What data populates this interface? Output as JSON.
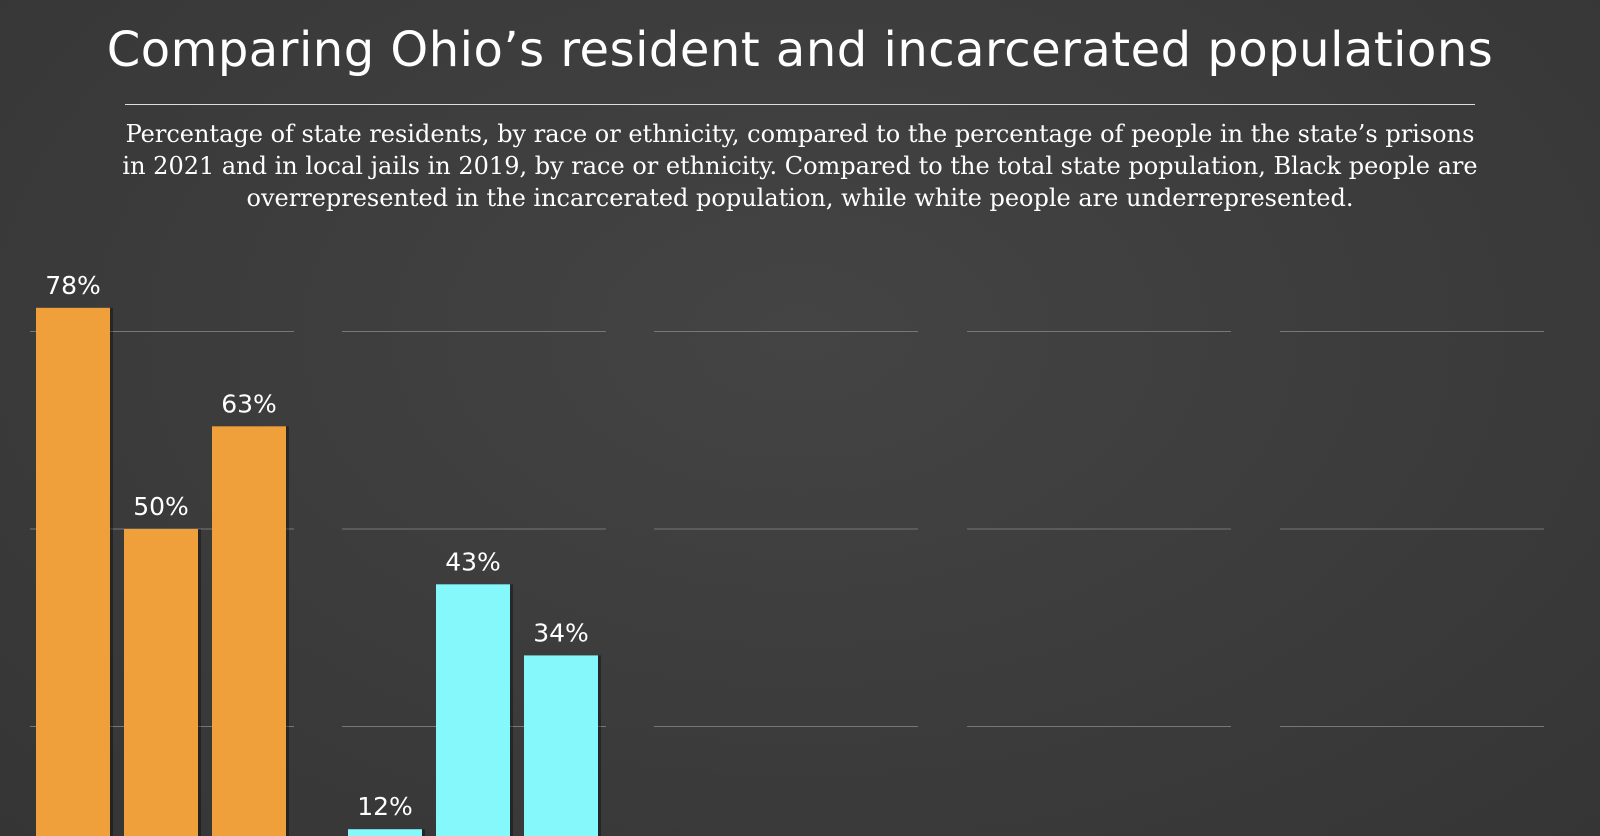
{
  "title": "Comparing Ohio’s resident and incarcerated populations",
  "subtitle": "Percentage of state residents, by race or ethnicity, compared to the percentage of people in the state’s prisons in 2021 and in local jails in 2019, by race or ethnicity. Compared to the total state population, Black people are overrepresented in the incarcerated population, while white people are underrepresented.",
  "chart_data": {
    "type": "bar",
    "ylim": [
      0,
      100
    ],
    "grid": true,
    "gridlines": [
      25,
      50,
      75
    ],
    "panels": [
      {
        "values": [
          78,
          50,
          63
        ],
        "labels": [
          "78%",
          "50%",
          "63%"
        ],
        "color": "#f0a03a"
      },
      {
        "values": [
          12,
          43,
          34
        ],
        "labels": [
          "12%",
          "43%",
          "34%"
        ],
        "color": "#84f8fb"
      },
      {
        "values": [],
        "labels": [],
        "color": ""
      },
      {
        "values": [],
        "labels": [],
        "color": ""
      },
      {
        "values": [],
        "labels": [],
        "color": ""
      }
    ]
  }
}
